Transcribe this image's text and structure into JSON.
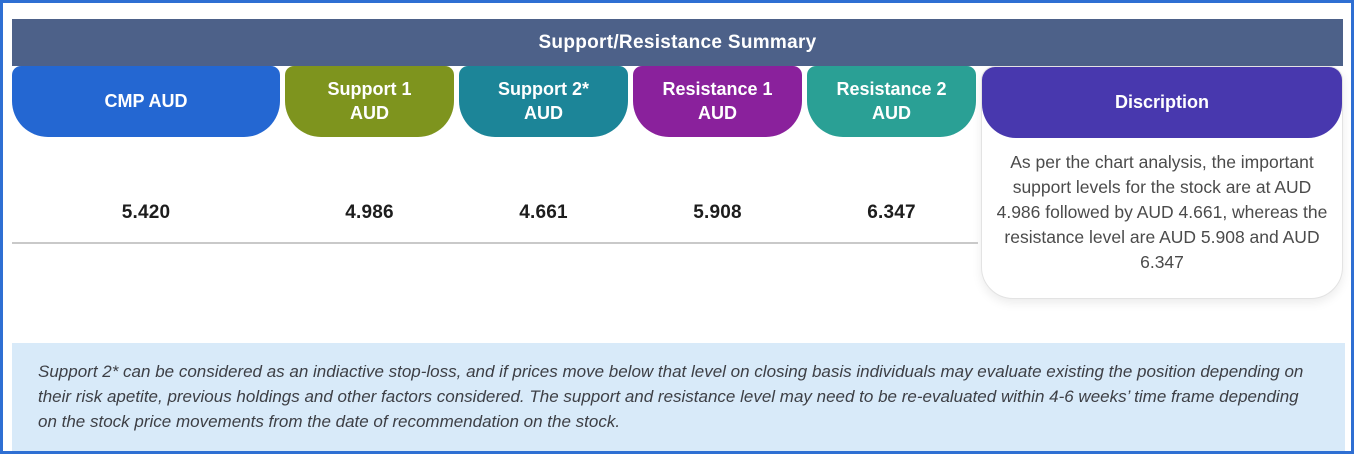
{
  "header": {
    "title": "Support/Resistance Summary",
    "bg_color": "#4d6189"
  },
  "columns": [
    {
      "label": "CMP AUD",
      "value": "5.420",
      "color": "#2467d2"
    },
    {
      "label": "Support 1\nAUD",
      "value": "4.986",
      "color": "#7e941e"
    },
    {
      "label": "Support 2*\nAUD",
      "value": "4.661",
      "color": "#1c8598"
    },
    {
      "label": "Resistance 1\nAUD",
      "value": "5.908",
      "color": "#8a219c"
    },
    {
      "label": "Resistance 2\nAUD",
      "value": "6.347",
      "color": "#2aa095"
    }
  ],
  "description": {
    "label": "Discription",
    "color": "#4838ae",
    "text": "As per the chart analysis, the important support levels for the stock are at AUD 4.986 followed by AUD 4.661, whereas the resistance level are AUD 5.908 and AUD 6.347"
  },
  "footnote": {
    "bg_color": "#d8eaf9",
    "text": "Support 2* can be considered as an indiactive stop-loss, and if prices move below that level on closing basis individuals may evaluate existing the position depending on their risk apetite, previous holdings and other factors considered. The support and resistance level may need to be re-evaluated within 4-6 weeks’ time frame depending on the stock price movements from  the date of recommendation on the stock."
  },
  "frame": {
    "border_color": "#2e6fd3"
  }
}
